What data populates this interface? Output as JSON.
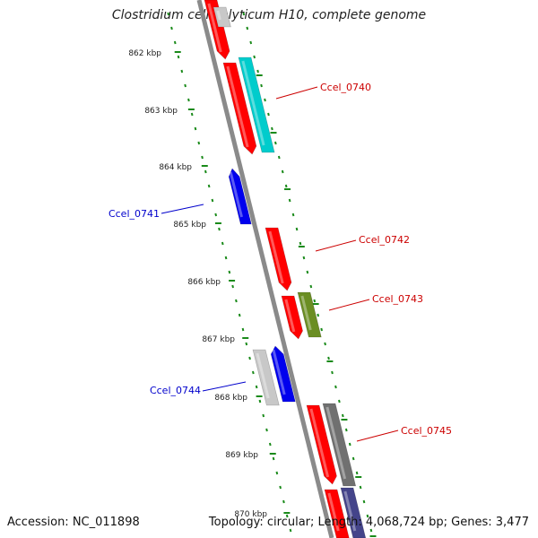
{
  "header": {
    "title": "Clostridium cellulolyticum H10, complete genome"
  },
  "footer": {
    "accession": "Accession: NC_011898",
    "summary": "Topology: circular; Length: 4,068,724 bp; Genes: 3,477"
  },
  "axis_ticks": [
    {
      "label": "862 kbp"
    },
    {
      "label": "863 kbp"
    },
    {
      "label": "864 kbp"
    },
    {
      "label": "865 kbp"
    },
    {
      "label": "866 kbp"
    },
    {
      "label": "867 kbp"
    },
    {
      "label": "868 kbp"
    },
    {
      "label": "869 kbp"
    },
    {
      "label": "870 kbp"
    }
  ],
  "gene_labels": [
    {
      "label": "Ccel_0740",
      "color": "#cc0000"
    },
    {
      "label": "Ccel_0741",
      "color": "#0000cc"
    },
    {
      "label": "Ccel_0742",
      "color": "#cc0000"
    },
    {
      "label": "Ccel_0743",
      "color": "#cc0000"
    },
    {
      "label": "Ccel_0744",
      "color": "#0000cc"
    },
    {
      "label": "Ccel_0745",
      "color": "#cc0000"
    }
  ],
  "colors": {
    "backbone": "#8a8a8a",
    "tick": "#1a8a1a",
    "red": "#ff0000",
    "blue": "#0000ee",
    "cyan": "#00cccc",
    "olive": "#6b8e23",
    "gray_light": "#c8c8c8",
    "gray_dark": "#707070",
    "navy": "#44448a"
  }
}
